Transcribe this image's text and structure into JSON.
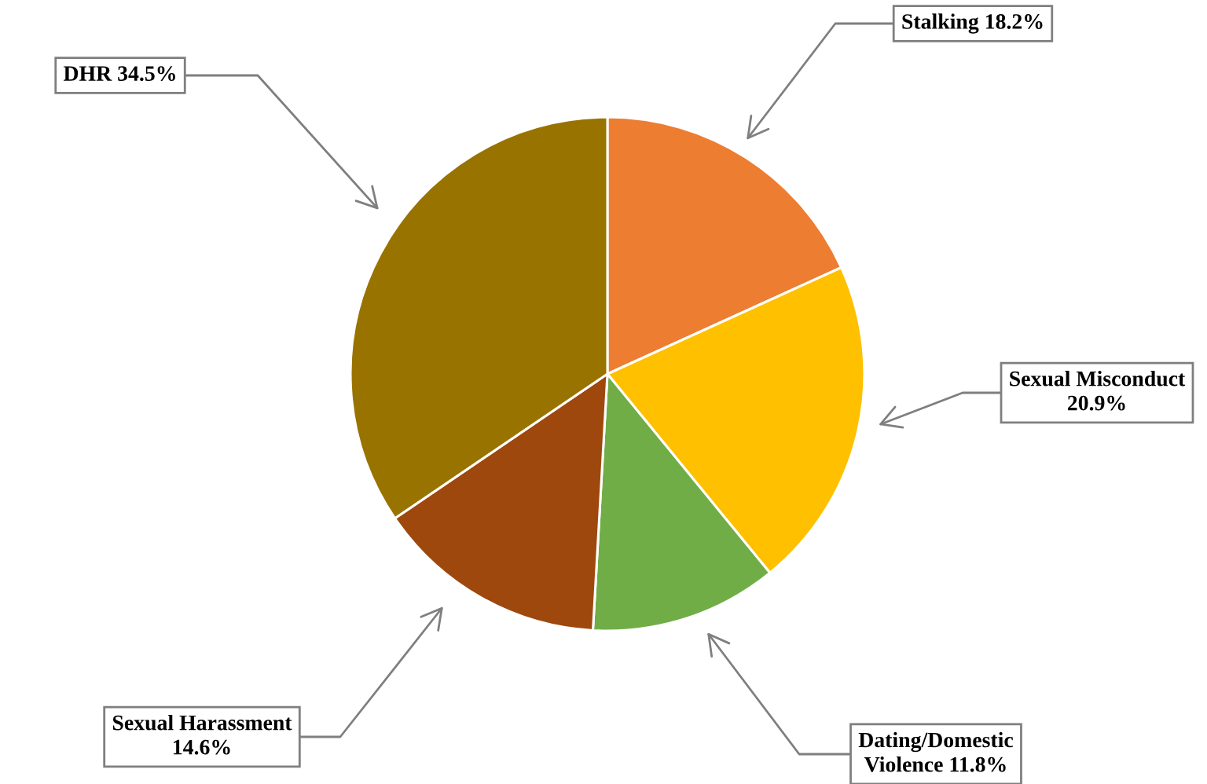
{
  "chart_data": {
    "type": "pie",
    "categories": [
      "Stalking",
      "Sexual Misconduct",
      "Dating/Domestic Violence",
      "Sexual Harassment",
      "DHR"
    ],
    "values": [
      18.2,
      20.9,
      11.8,
      14.6,
      34.5
    ],
    "colors": [
      "#ed7d31",
      "#ffc000",
      "#70ad47",
      "#9e480e",
      "#997300"
    ],
    "value_labels": [
      "18.2%",
      "20.9%",
      "11.8%",
      "14.6%",
      "34.5%"
    ]
  }
}
